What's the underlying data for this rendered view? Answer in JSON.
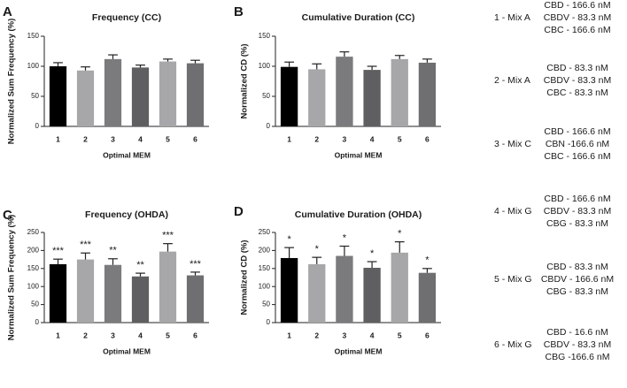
{
  "colors": {
    "bars": [
      "#000000",
      "#a7a7a9",
      "#7b7b7d",
      "#5f5f61",
      "#a7a7a9",
      "#6f6f71"
    ],
    "axis": "#222222",
    "text": "#1a1a1a"
  },
  "chart_data": [
    {
      "panel": "A",
      "type": "bar",
      "title": "Frequency (CC)",
      "xlabel": "Optimal MEM",
      "ylabel": "Normalized Sum Frequency (%)",
      "ylim": [
        0,
        150
      ],
      "yticks": [
        0,
        50,
        100,
        150
      ],
      "categories": [
        "1",
        "2",
        "3",
        "4",
        "5",
        "6"
      ],
      "values": [
        100,
        93,
        112,
        98,
        108,
        105
      ],
      "errors": [
        6,
        6,
        7,
        4,
        4,
        5
      ],
      "annotations": [
        "",
        "",
        "",
        "",
        "",
        ""
      ],
      "show_xlabel": true
    },
    {
      "panel": "B",
      "type": "bar",
      "title": "Cumulative Duration (CC)",
      "xlabel": "Optimal MEM",
      "ylabel": "Normalized CD (%)",
      "ylim": [
        0,
        150
      ],
      "yticks": [
        0,
        50,
        100,
        150
      ],
      "categories": [
        "1",
        "2",
        "3",
        "4",
        "5",
        "6"
      ],
      "values": [
        99,
        95,
        116,
        94,
        112,
        106
      ],
      "errors": [
        8,
        9,
        8,
        6,
        6,
        6
      ],
      "annotations": [
        "",
        "",
        "",
        "",
        "",
        ""
      ],
      "show_xlabel": true
    },
    {
      "panel": "C",
      "type": "bar",
      "title": "Frequency (OHDA)",
      "xlabel": "Optimal MEM",
      "ylabel": "Normalized Sum Frequency (%)",
      "ylim": [
        0,
        250
      ],
      "yticks": [
        0,
        50,
        100,
        150,
        200,
        250
      ],
      "categories": [
        "1",
        "2",
        "3",
        "4",
        "5",
        "6"
      ],
      "values": [
        162,
        175,
        160,
        128,
        197,
        131
      ],
      "errors": [
        14,
        18,
        17,
        9,
        22,
        9
      ],
      "annotations": [
        "***",
        "***",
        "**",
        "**",
        "***",
        "***"
      ],
      "show_xlabel": true
    },
    {
      "panel": "D",
      "type": "bar",
      "title": "Cumulative Duration (OHDA)",
      "xlabel": "Optimal MEM",
      "ylabel": "Normalized CD (%)",
      "ylim": [
        0,
        250
      ],
      "yticks": [
        0,
        50,
        100,
        150,
        200,
        250
      ],
      "categories": [
        "1",
        "2",
        "3",
        "4",
        "5",
        "6"
      ],
      "values": [
        179,
        162,
        185,
        152,
        194,
        138
      ],
      "errors": [
        29,
        19,
        27,
        17,
        30,
        12
      ],
      "annotations": [
        "*",
        "*",
        "*",
        "*",
        "*",
        "*"
      ],
      "show_xlabel": true
    }
  ],
  "legend": [
    {
      "label": "1 - Mix A",
      "components": [
        "CBD - 166.6 nM",
        "CBDV - 83.3 nM",
        "CBC - 166.6 nM"
      ]
    },
    {
      "label": "2 - Mix A",
      "components": [
        "CBD - 83.3 nM",
        "CBDV - 83.3 nM",
        "CBC - 83.3 nM"
      ]
    },
    {
      "label": "3 - Mix C",
      "components": [
        "CBD - 166.6 nM",
        "CBN -166.6 nM",
        "CBC - 166.6 nM"
      ]
    },
    {
      "label": "4 - Mix G",
      "components": [
        "CBD - 166.6 nM",
        "CBDV - 83.3 nM",
        "CBG - 83.3 nM"
      ]
    },
    {
      "label": "5 - Mix G",
      "components": [
        "CBD - 83.3 nM",
        "CBDV - 166.6 nM",
        "CBG - 83.3 nM"
      ]
    },
    {
      "label": "6 - Mix G",
      "components": [
        "CBD - 16.6 nM",
        "CBDV - 83.3 nM",
        "CBG -166.6 nM"
      ]
    }
  ]
}
